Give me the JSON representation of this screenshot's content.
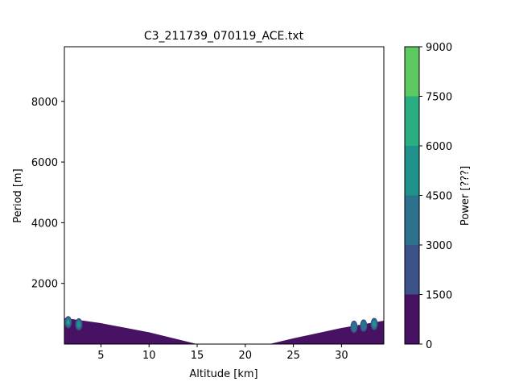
{
  "chart_data": {
    "type": "contour",
    "title": "C3_211739_070119_ACE.txt",
    "xlabel": "Altitude [km]",
    "ylabel": "Period [m]",
    "xlim": [
      1.2,
      34.4
    ],
    "ylim": [
      0,
      9800
    ],
    "xticks": [
      5,
      10,
      15,
      20,
      25,
      30
    ],
    "yticks": [
      2000,
      4000,
      6000,
      8000
    ],
    "colorbar": {
      "label": "Power [???]",
      "levels": [
        0,
        1500,
        3000,
        4500,
        6000,
        7500,
        9000
      ],
      "colors": [
        "#471164",
        "#3b528b",
        "#2c728e",
        "#21918c",
        "#28ae80",
        "#5ec962",
        "#c8e020"
      ]
    },
    "filled_region_boundary": {
      "lower": "y = 0",
      "upper": [
        {
          "x": 1.2,
          "y": 860
        },
        {
          "x": 5,
          "y": 690
        },
        {
          "x": 10,
          "y": 390
        },
        {
          "x": 15,
          "y": 0
        },
        {
          "x": 22.5,
          "y": 0
        },
        {
          "x": 25,
          "y": 190
        },
        {
          "x": 30,
          "y": 530
        },
        {
          "x": 34.4,
          "y": 770
        }
      ]
    },
    "hotspots": [
      {
        "x": 1.6,
        "y": 720,
        "power": 6000
      },
      {
        "x": 2.7,
        "y": 650,
        "power": 4500
      },
      {
        "x": 31.3,
        "y": 570,
        "power": 3000
      },
      {
        "x": 32.3,
        "y": 610,
        "power": 3000
      },
      {
        "x": 33.4,
        "y": 660,
        "power": 4500
      }
    ]
  }
}
